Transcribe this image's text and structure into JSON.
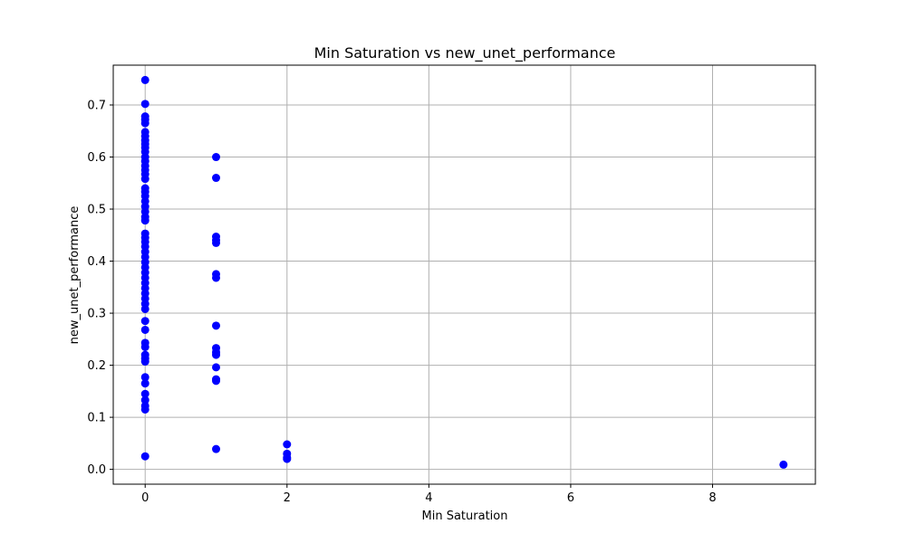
{
  "chart_data": {
    "type": "scatter",
    "title": "Min Saturation vs new_unet_performance",
    "xlabel": "Min Saturation",
    "ylabel": "new_unet_performance",
    "xlim": [
      -0.45,
      9.45
    ],
    "ylim": [
      -0.0285,
      0.7765
    ],
    "xticks": [
      0,
      2,
      4,
      6,
      8
    ],
    "yticks": [
      0.0,
      0.1,
      0.2,
      0.3,
      0.4,
      0.5,
      0.6,
      0.7
    ],
    "xtick_labels": [
      "0",
      "2",
      "4",
      "6",
      "8"
    ],
    "ytick_labels": [
      "0.0",
      "0.1",
      "0.2",
      "0.3",
      "0.4",
      "0.5",
      "0.6",
      "0.7"
    ],
    "grid": true,
    "marker_color": "#0000ff",
    "points": [
      {
        "x": 0,
        "y": 0.748
      },
      {
        "x": 0,
        "y": 0.702
      },
      {
        "x": 0,
        "y": 0.678
      },
      {
        "x": 0,
        "y": 0.672
      },
      {
        "x": 0,
        "y": 0.665
      },
      {
        "x": 0,
        "y": 0.648
      },
      {
        "x": 0,
        "y": 0.64
      },
      {
        "x": 0,
        "y": 0.632
      },
      {
        "x": 0,
        "y": 0.625
      },
      {
        "x": 0,
        "y": 0.618
      },
      {
        "x": 0,
        "y": 0.61
      },
      {
        "x": 0,
        "y": 0.6
      },
      {
        "x": 0,
        "y": 0.592
      },
      {
        "x": 0,
        "y": 0.583
      },
      {
        "x": 0,
        "y": 0.575
      },
      {
        "x": 0,
        "y": 0.567
      },
      {
        "x": 0,
        "y": 0.558
      },
      {
        "x": 0,
        "y": 0.54
      },
      {
        "x": 0,
        "y": 0.533
      },
      {
        "x": 0,
        "y": 0.525
      },
      {
        "x": 0,
        "y": 0.515
      },
      {
        "x": 0,
        "y": 0.505
      },
      {
        "x": 0,
        "y": 0.495
      },
      {
        "x": 0,
        "y": 0.485
      },
      {
        "x": 0,
        "y": 0.478
      },
      {
        "x": 0,
        "y": 0.453
      },
      {
        "x": 0,
        "y": 0.445
      },
      {
        "x": 0,
        "y": 0.437
      },
      {
        "x": 0,
        "y": 0.428
      },
      {
        "x": 0,
        "y": 0.418
      },
      {
        "x": 0,
        "y": 0.408
      },
      {
        "x": 0,
        "y": 0.398
      },
      {
        "x": 0,
        "y": 0.388
      },
      {
        "x": 0,
        "y": 0.378
      },
      {
        "x": 0,
        "y": 0.368
      },
      {
        "x": 0,
        "y": 0.358
      },
      {
        "x": 0,
        "y": 0.348
      },
      {
        "x": 0,
        "y": 0.338
      },
      {
        "x": 0,
        "y": 0.328
      },
      {
        "x": 0,
        "y": 0.318
      },
      {
        "x": 0,
        "y": 0.308
      },
      {
        "x": 0,
        "y": 0.285
      },
      {
        "x": 0,
        "y": 0.268
      },
      {
        "x": 0,
        "y": 0.243
      },
      {
        "x": 0,
        "y": 0.235
      },
      {
        "x": 0,
        "y": 0.22
      },
      {
        "x": 0,
        "y": 0.213
      },
      {
        "x": 0,
        "y": 0.207
      },
      {
        "x": 0,
        "y": 0.177
      },
      {
        "x": 0,
        "y": 0.165
      },
      {
        "x": 0,
        "y": 0.145
      },
      {
        "x": 0,
        "y": 0.133
      },
      {
        "x": 0,
        "y": 0.122
      },
      {
        "x": 0,
        "y": 0.115
      },
      {
        "x": 0,
        "y": 0.025
      },
      {
        "x": 1,
        "y": 0.6
      },
      {
        "x": 1,
        "y": 0.56
      },
      {
        "x": 1,
        "y": 0.447
      },
      {
        "x": 1,
        "y": 0.44
      },
      {
        "x": 1,
        "y": 0.435
      },
      {
        "x": 1,
        "y": 0.375
      },
      {
        "x": 1,
        "y": 0.368
      },
      {
        "x": 1,
        "y": 0.276
      },
      {
        "x": 1,
        "y": 0.233
      },
      {
        "x": 1,
        "y": 0.225
      },
      {
        "x": 1,
        "y": 0.22
      },
      {
        "x": 1,
        "y": 0.196
      },
      {
        "x": 1,
        "y": 0.173
      },
      {
        "x": 1,
        "y": 0.17
      },
      {
        "x": 1,
        "y": 0.039
      },
      {
        "x": 2,
        "y": 0.048
      },
      {
        "x": 2,
        "y": 0.03
      },
      {
        "x": 2,
        "y": 0.023
      },
      {
        "x": 2,
        "y": 0.02
      },
      {
        "x": 9,
        "y": 0.009
      }
    ]
  }
}
